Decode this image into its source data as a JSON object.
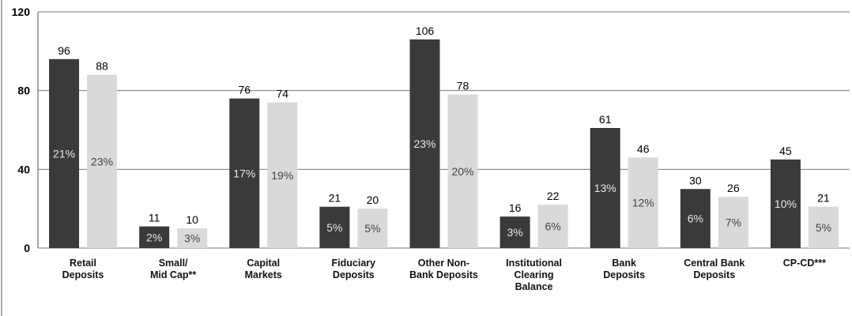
{
  "chart_data": {
    "type": "bar",
    "categories": [
      "Retail\nDeposits",
      "Small/\nMid Cap**",
      "Capital\nMarkets",
      "Fiduciary\nDeposits",
      "Other Non-\nBank Deposits",
      "Institutional\nClearing\nBalance",
      "Bank\nDeposits",
      "Central Bank\nDeposits",
      "CP-CD***"
    ],
    "series": [
      {
        "color": "#3a3a3a",
        "values": [
          96,
          11,
          76,
          21,
          106,
          16,
          61,
          30,
          45
        ],
        "share_labels": [
          "21%",
          "2%",
          "17%",
          "5%",
          "23%",
          "3%",
          "13%",
          "6%",
          "10%"
        ],
        "share_color": "#e8e8e8"
      },
      {
        "color": "#d9d9d9",
        "values": [
          88,
          10,
          74,
          20,
          78,
          22,
          46,
          26,
          21
        ],
        "share_labels": [
          "23%",
          "3%",
          "19%",
          "5%",
          "20%",
          "6%",
          "12%",
          "7%",
          "5%"
        ],
        "share_color": "#444444"
      }
    ],
    "ylim": [
      0,
      120
    ],
    "yticks": [
      0,
      40,
      80,
      120
    ],
    "grid": true
  }
}
